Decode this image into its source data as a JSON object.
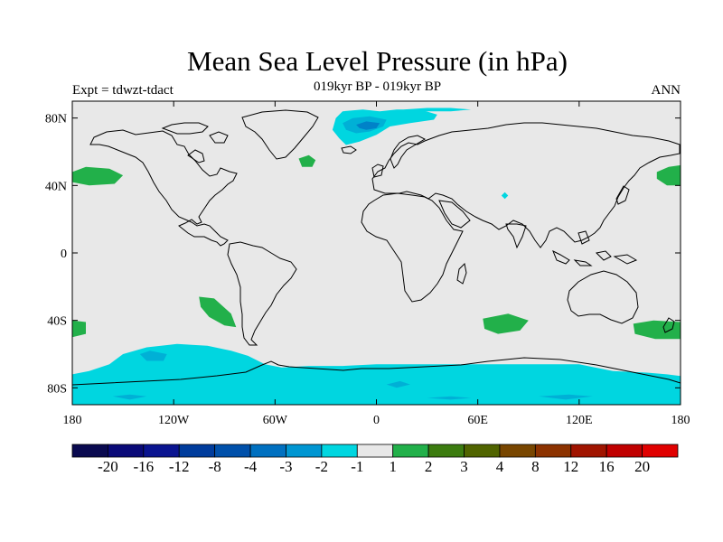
{
  "title": "Mean Sea Level Pressure (in hPa)",
  "subtitle_left": "Expt = tdwzt-tdact",
  "subtitle_center": "019kyr BP - 019kyr BP",
  "subtitle_right": "ANN",
  "colors": {
    "ocean": "#e8e8e8",
    "coast": "#000000",
    "neg1": "#00d6e0",
    "neg2": "#00b0d6",
    "neg3": "#0082c8",
    "pos1": "#22b04a"
  },
  "chart_data": {
    "type": "heatmap",
    "projection": "cylindrical-equidistant",
    "xlim": [
      -180,
      180
    ],
    "ylim": [
      -90,
      90
    ],
    "x_ticks": [
      {
        "value": -180,
        "label": "180"
      },
      {
        "value": -120,
        "label": "120W"
      },
      {
        "value": -60,
        "label": "60W"
      },
      {
        "value": 0,
        "label": "0"
      },
      {
        "value": 60,
        "label": "60E"
      },
      {
        "value": 120,
        "label": "120E"
      },
      {
        "value": 180,
        "label": "180"
      }
    ],
    "y_ticks": [
      {
        "value": 80,
        "label": "80N"
      },
      {
        "value": 40,
        "label": "40N"
      },
      {
        "value": 0,
        "label": "0"
      },
      {
        "value": -40,
        "label": "40S"
      },
      {
        "value": -80,
        "label": "80S"
      }
    ],
    "colorbar": {
      "labels": [
        "-20",
        "-16",
        "-12",
        "-8",
        "-4",
        "-3",
        "-2",
        "-1",
        "1",
        "2",
        "3",
        "4",
        "8",
        "12",
        "16",
        "20"
      ],
      "colors": [
        "#0a0a50",
        "#0a0a78",
        "#0a1490",
        "#003c9c",
        "#0050aa",
        "#0070c0",
        "#0096d2",
        "#00d6e0",
        "#e8e8e8",
        "#22b04a",
        "#3c7c10",
        "#506400",
        "#784600",
        "#8c3200",
        "#a01400",
        "#c00000",
        "#e00000"
      ]
    },
    "regions": [
      {
        "name": "north-atlantic-low",
        "level": "neg1",
        "points": [
          [
            -24,
            80
          ],
          [
            -20,
            84
          ],
          [
            -8,
            85
          ],
          [
            2,
            84
          ],
          [
            12,
            85
          ],
          [
            26,
            85
          ],
          [
            36,
            82
          ],
          [
            34,
            79
          ],
          [
            20,
            77
          ],
          [
            8,
            75
          ],
          [
            0,
            70
          ],
          [
            -10,
            66
          ],
          [
            -18,
            64
          ],
          [
            -22,
            68
          ],
          [
            -26,
            73
          ]
        ]
      },
      {
        "name": "north-atlantic-low-core",
        "level": "neg2",
        "points": [
          [
            -20,
            77
          ],
          [
            -14,
            80
          ],
          [
            -4,
            81
          ],
          [
            6,
            79
          ],
          [
            4,
            75
          ],
          [
            -4,
            72
          ],
          [
            -12,
            71
          ],
          [
            -18,
            73
          ]
        ]
      },
      {
        "name": "north-atlantic-low-inner",
        "level": "neg3",
        "points": [
          [
            -12,
            76
          ],
          [
            -6,
            78
          ],
          [
            2,
            77
          ],
          [
            0,
            74
          ],
          [
            -6,
            73
          ],
          [
            -10,
            74
          ]
        ]
      },
      {
        "name": "arctic-ridge",
        "level": "neg1",
        "points": [
          [
            16,
            85
          ],
          [
            30,
            86
          ],
          [
            44,
            86
          ],
          [
            56,
            85
          ],
          [
            44,
            84
          ],
          [
            30,
            84
          ]
        ]
      },
      {
        "name": "tibet-spot",
        "level": "neg1",
        "points": [
          [
            74,
            34
          ],
          [
            76,
            36
          ],
          [
            78,
            34
          ],
          [
            76,
            32
          ]
        ]
      },
      {
        "name": "antarctic-band",
        "level": "neg1",
        "points": [
          [
            -180,
            -72
          ],
          [
            -170,
            -70
          ],
          [
            -158,
            -66
          ],
          [
            -150,
            -60
          ],
          [
            -136,
            -56
          ],
          [
            -118,
            -54
          ],
          [
            -100,
            -55
          ],
          [
            -86,
            -58
          ],
          [
            -76,
            -61
          ],
          [
            -66,
            -66
          ],
          [
            -56,
            -68
          ],
          [
            -40,
            -67
          ],
          [
            -20,
            -67
          ],
          [
            0,
            -66
          ],
          [
            30,
            -66
          ],
          [
            60,
            -66
          ],
          [
            90,
            -66
          ],
          [
            120,
            -66
          ],
          [
            140,
            -70
          ],
          [
            160,
            -71
          ],
          [
            172,
            -72
          ],
          [
            180,
            -73
          ],
          [
            180,
            -90
          ],
          [
            -180,
            -90
          ]
        ]
      },
      {
        "name": "antarctic-core-1",
        "level": "neg2",
        "points": [
          [
            -140,
            -60
          ],
          [
            -134,
            -58
          ],
          [
            -124,
            -60
          ],
          [
            -126,
            -64
          ],
          [
            -136,
            -64
          ]
        ]
      },
      {
        "name": "antarctic-core-2",
        "level": "neg2",
        "points": [
          [
            -156,
            -85
          ],
          [
            -146,
            -84
          ],
          [
            -136,
            -85
          ],
          [
            -146,
            -87
          ]
        ]
      },
      {
        "name": "antarctic-core-3",
        "level": "neg2",
        "points": [
          [
            6,
            -78
          ],
          [
            14,
            -76
          ],
          [
            20,
            -78
          ],
          [
            12,
            -80
          ]
        ]
      },
      {
        "name": "antarctic-core-4",
        "level": "neg2",
        "points": [
          [
            30,
            -86
          ],
          [
            44,
            -85
          ],
          [
            56,
            -86
          ],
          [
            44,
            -87
          ]
        ]
      },
      {
        "name": "antarctic-core-5",
        "level": "neg2",
        "points": [
          [
            96,
            -85
          ],
          [
            114,
            -84
          ],
          [
            128,
            -85
          ],
          [
            112,
            -87
          ]
        ]
      },
      {
        "name": "north-pacific-high-west",
        "level": "pos1",
        "points": [
          [
            -180,
            48
          ],
          [
            -172,
            51
          ],
          [
            -158,
            50
          ],
          [
            -150,
            46
          ],
          [
            -155,
            41
          ],
          [
            -170,
            40
          ],
          [
            -180,
            42
          ]
        ]
      },
      {
        "name": "north-pacific-high-east",
        "level": "pos1",
        "points": [
          [
            166,
            48
          ],
          [
            173,
            51
          ],
          [
            180,
            52
          ],
          [
            180,
            40
          ],
          [
            172,
            40
          ],
          [
            166,
            44
          ]
        ]
      },
      {
        "name": "atlantic-spot",
        "level": "pos1",
        "points": [
          [
            -46,
            56
          ],
          [
            -40,
            58
          ],
          [
            -36,
            55
          ],
          [
            -38,
            51
          ],
          [
            -44,
            51
          ]
        ]
      },
      {
        "name": "south-pacific-high",
        "level": "pos1",
        "points": [
          [
            -105,
            -26
          ],
          [
            -96,
            -27
          ],
          [
            -86,
            -36
          ],
          [
            -83,
            -44
          ],
          [
            -90,
            -43
          ],
          [
            -99,
            -38
          ],
          [
            -104,
            -32
          ]
        ]
      },
      {
        "name": "south-pacific-high-west",
        "level": "pos1",
        "points": [
          [
            -180,
            -40
          ],
          [
            -172,
            -41
          ],
          [
            -172,
            -48
          ],
          [
            -180,
            -50
          ]
        ]
      },
      {
        "name": "south-indian-high",
        "level": "pos1",
        "points": [
          [
            63,
            -39
          ],
          [
            78,
            -36
          ],
          [
            90,
            -40
          ],
          [
            85,
            -46
          ],
          [
            72,
            -48
          ],
          [
            64,
            -45
          ]
        ]
      },
      {
        "name": "south-pacific-high-east",
        "level": "pos1",
        "points": [
          [
            152,
            -42
          ],
          [
            164,
            -40
          ],
          [
            180,
            -41
          ],
          [
            180,
            -51
          ],
          [
            165,
            -51
          ],
          [
            153,
            -48
          ]
        ]
      }
    ]
  }
}
